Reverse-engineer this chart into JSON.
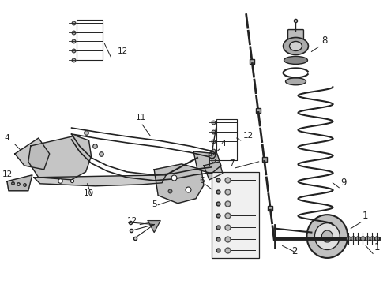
{
  "background_color": "#ffffff",
  "fig_width": 4.9,
  "fig_height": 3.6,
  "dpi": 100,
  "label_fontsize": 7.5,
  "label_color": "#111111",
  "line_color": "#222222",
  "lw_main": 1.8,
  "lw_thin": 1.0,
  "lw_thick": 2.5,
  "part_color": "#555555",
  "fill_light": "#d8d8d8",
  "fill_dark": "#999999"
}
